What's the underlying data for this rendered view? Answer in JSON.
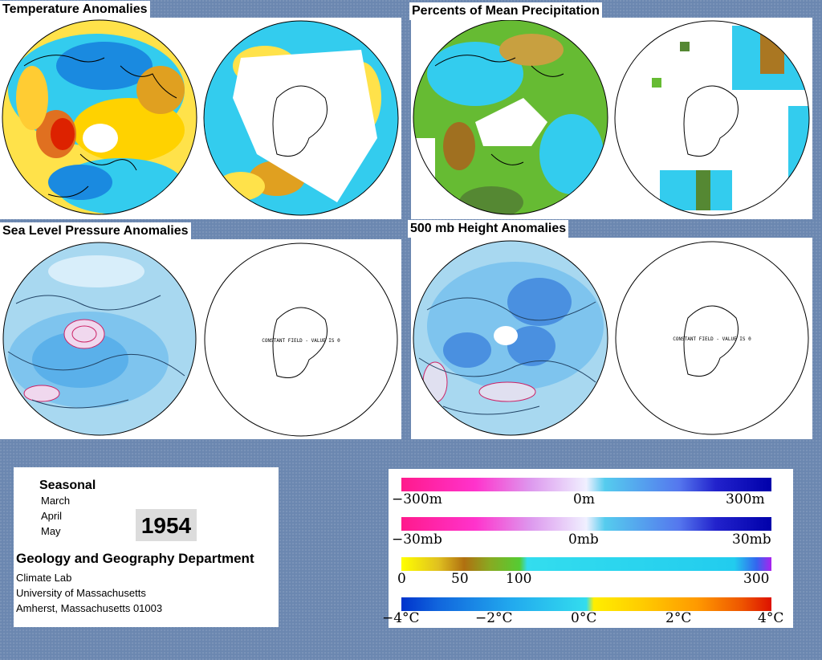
{
  "panels": {
    "temperature": {
      "title": "Temperature Anomalies"
    },
    "precipitation": {
      "title": "Percents of Mean Precipitation"
    },
    "slp": {
      "title": "Sea Level Pressure Anomalies",
      "constant_text": "CONSTANT FIELD - VALUE IS 0"
    },
    "height500": {
      "title": "500 mb Height Anomalies",
      "constant_text": "CONSTANT FIELD - VALUE IS 0"
    }
  },
  "info": {
    "period_label": "Seasonal",
    "months": [
      "March",
      "April",
      "May"
    ],
    "year": "1954",
    "department": "Geology and Geography Department",
    "lines": [
      "Climate Lab",
      "University of Massachusetts",
      "Amherst, Massachusetts 01003"
    ]
  },
  "legend": {
    "height": {
      "labels": [
        "−300m",
        "0m",
        "300m"
      ]
    },
    "pressure": {
      "labels": [
        "−30mb",
        "0mb",
        "30mb"
      ]
    },
    "precip": {
      "labels": [
        "0",
        "50",
        "100",
        "300"
      ]
    },
    "temp": {
      "labels": [
        "−4°C",
        "−2°C",
        "0°C",
        "2°C",
        "4°C"
      ]
    }
  },
  "colors": {
    "background": "#6b87b0",
    "magenta": "#ff1a8c",
    "blue": "#0000cc",
    "cyan": "#33ddee",
    "yellow": "#ffee00",
    "red": "#dd1100",
    "olive": "#558833"
  }
}
